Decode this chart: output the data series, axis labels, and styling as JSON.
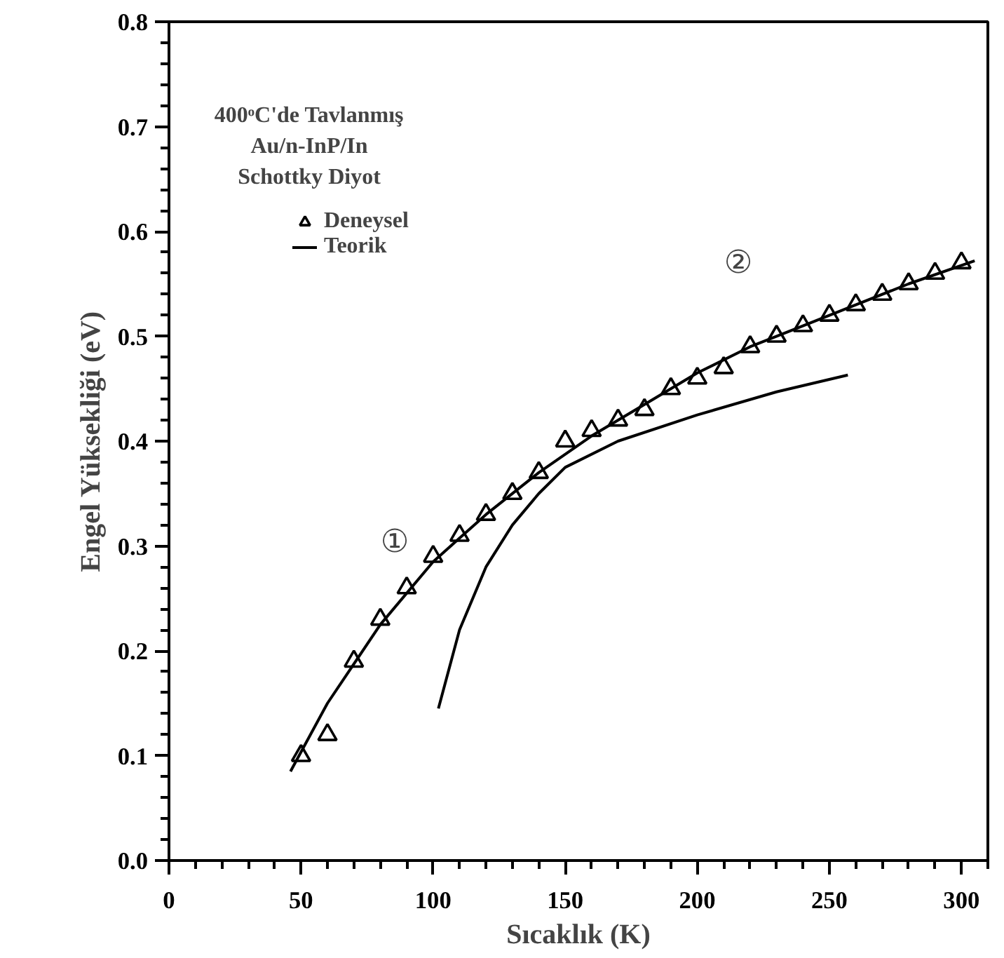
{
  "chart_data": {
    "type": "scatter",
    "xlabel": "Sıcaklık (K)",
    "ylabel": "Engel Yüksekliği (eV)",
    "legend_title": "400ᵒC'de Tavlanmış\nAu/n-InP/In\nSchottky Diyot",
    "legend": "top left",
    "grid": false,
    "xlim": [
      0,
      310
    ],
    "ylim": [
      0,
      0.8
    ],
    "xticks": [
      0,
      50,
      100,
      150,
      200,
      250,
      300
    ],
    "yticks": [
      {
        "value": 0,
        "label": "0.0"
      },
      0.1,
      0.2,
      0.3,
      0.4,
      0.5,
      0.6,
      0.7,
      0.8
    ],
    "series": [
      {
        "name": "Deneysel",
        "marker": "triangle",
        "color": "#000000",
        "x": [
          50,
          60,
          70,
          80,
          90,
          100,
          110,
          120,
          130,
          140,
          150,
          160,
          170,
          180,
          190,
          200,
          210,
          220,
          230,
          240,
          250,
          260,
          270,
          280,
          290,
          300
        ],
        "values": [
          0.1,
          0.12,
          0.19,
          0.23,
          0.26,
          0.29,
          0.31,
          0.33,
          0.35,
          0.37,
          0.4,
          0.41,
          0.42,
          0.43,
          0.45,
          0.46,
          0.47,
          0.49,
          0.5,
          0.51,
          0.52,
          0.53,
          0.54,
          0.55,
          0.56,
          0.57
        ]
      },
      {
        "name": "Teorik",
        "type": "line",
        "marker": "none",
        "color": "#000000",
        "x": [
          46,
          60,
          80,
          100,
          120,
          140,
          160,
          180,
          200,
          220,
          240,
          260,
          280,
          305
        ],
        "values": [
          0.085,
          0.15,
          0.225,
          0.285,
          0.33,
          0.37,
          0.405,
          0.435,
          0.465,
          0.49,
          0.51,
          0.53,
          0.55,
          0.572
        ]
      },
      {
        "type": "line",
        "marker": "none",
        "color": "#000000",
        "x": [
          102,
          110,
          120,
          130,
          140,
          150,
          170,
          200,
          230,
          257
        ],
        "values": [
          0.145,
          0.22,
          0.28,
          0.32,
          0.35,
          0.375,
          0.4,
          0.425,
          0.447,
          0.463
        ]
      }
    ],
    "annotations": [
      "①",
      "②"
    ]
  }
}
